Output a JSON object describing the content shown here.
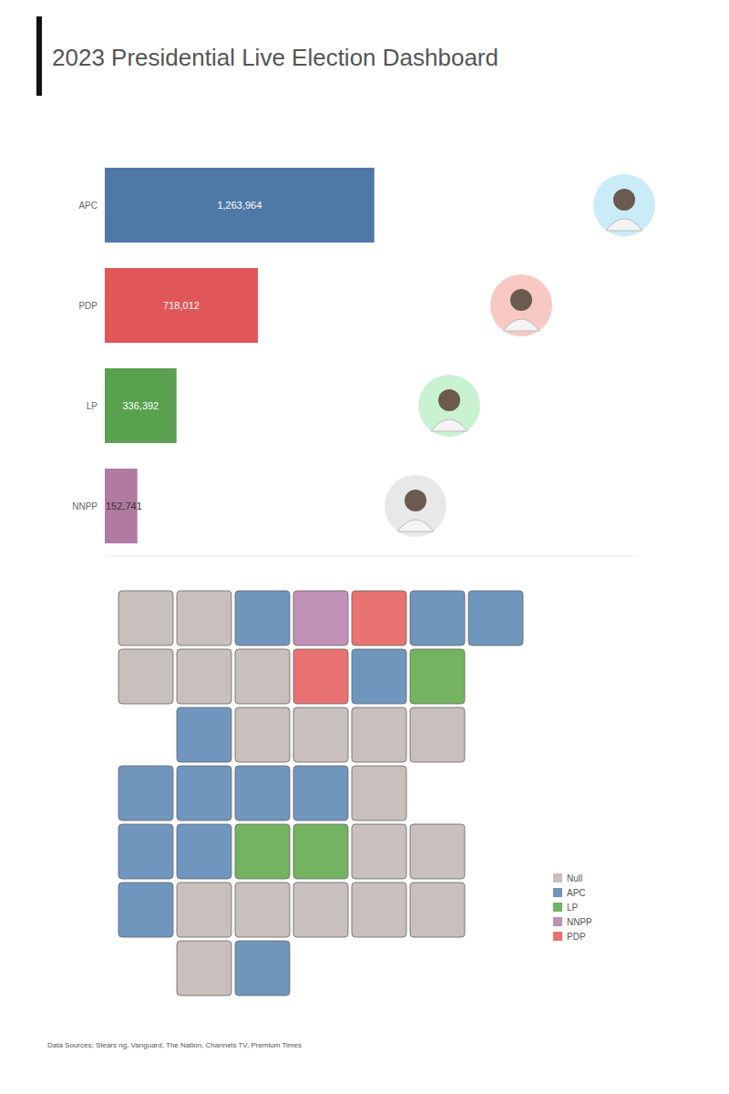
{
  "title": "2023 Presidential Live Election Dashboard",
  "chart_data": {
    "type": "bar",
    "orientation": "horizontal",
    "categories": [
      "APC",
      "PDP",
      "LP",
      "NNPP"
    ],
    "values": [
      1263964,
      718012,
      336392,
      152741
    ],
    "value_labels": [
      "1,263,964",
      "718,012",
      "336,392",
      "152,741"
    ],
    "colors": [
      "#4e79a7",
      "#e15759",
      "#59a14f",
      "#b07aa1"
    ],
    "xlim": [
      0,
      2500000
    ],
    "data_labels": true,
    "tick_labels": "y",
    "grid": false
  },
  "map": {
    "legend": [
      {
        "name": "Null",
        "color": "#c9bfbc"
      },
      {
        "name": "APC",
        "color": "#7096be"
      },
      {
        "name": "LP",
        "color": "#74b35f"
      },
      {
        "name": "NNPP",
        "color": "#c291b8"
      },
      {
        "name": "PDP",
        "color": "#e97372"
      }
    ],
    "regions": [
      "Null",
      "Null",
      "APC",
      "NNPP",
      "PDP",
      "APC",
      "APC",
      "Null",
      "Null",
      "Null",
      "PDP",
      "APC",
      "LP",
      "APC",
      "Null",
      "Null",
      "Null",
      "Null",
      "APC",
      "APC",
      "APC",
      "APC",
      "Null",
      "APC",
      "APC",
      "LP",
      "LP",
      "Null",
      "Null",
      "APC",
      "Null",
      "Null",
      "Null",
      "Null",
      "Null",
      "Null",
      "APC"
    ]
  },
  "source": "Data Sources; Stears ng, Vanguard, The Nation, Channels TV, Premium Times"
}
